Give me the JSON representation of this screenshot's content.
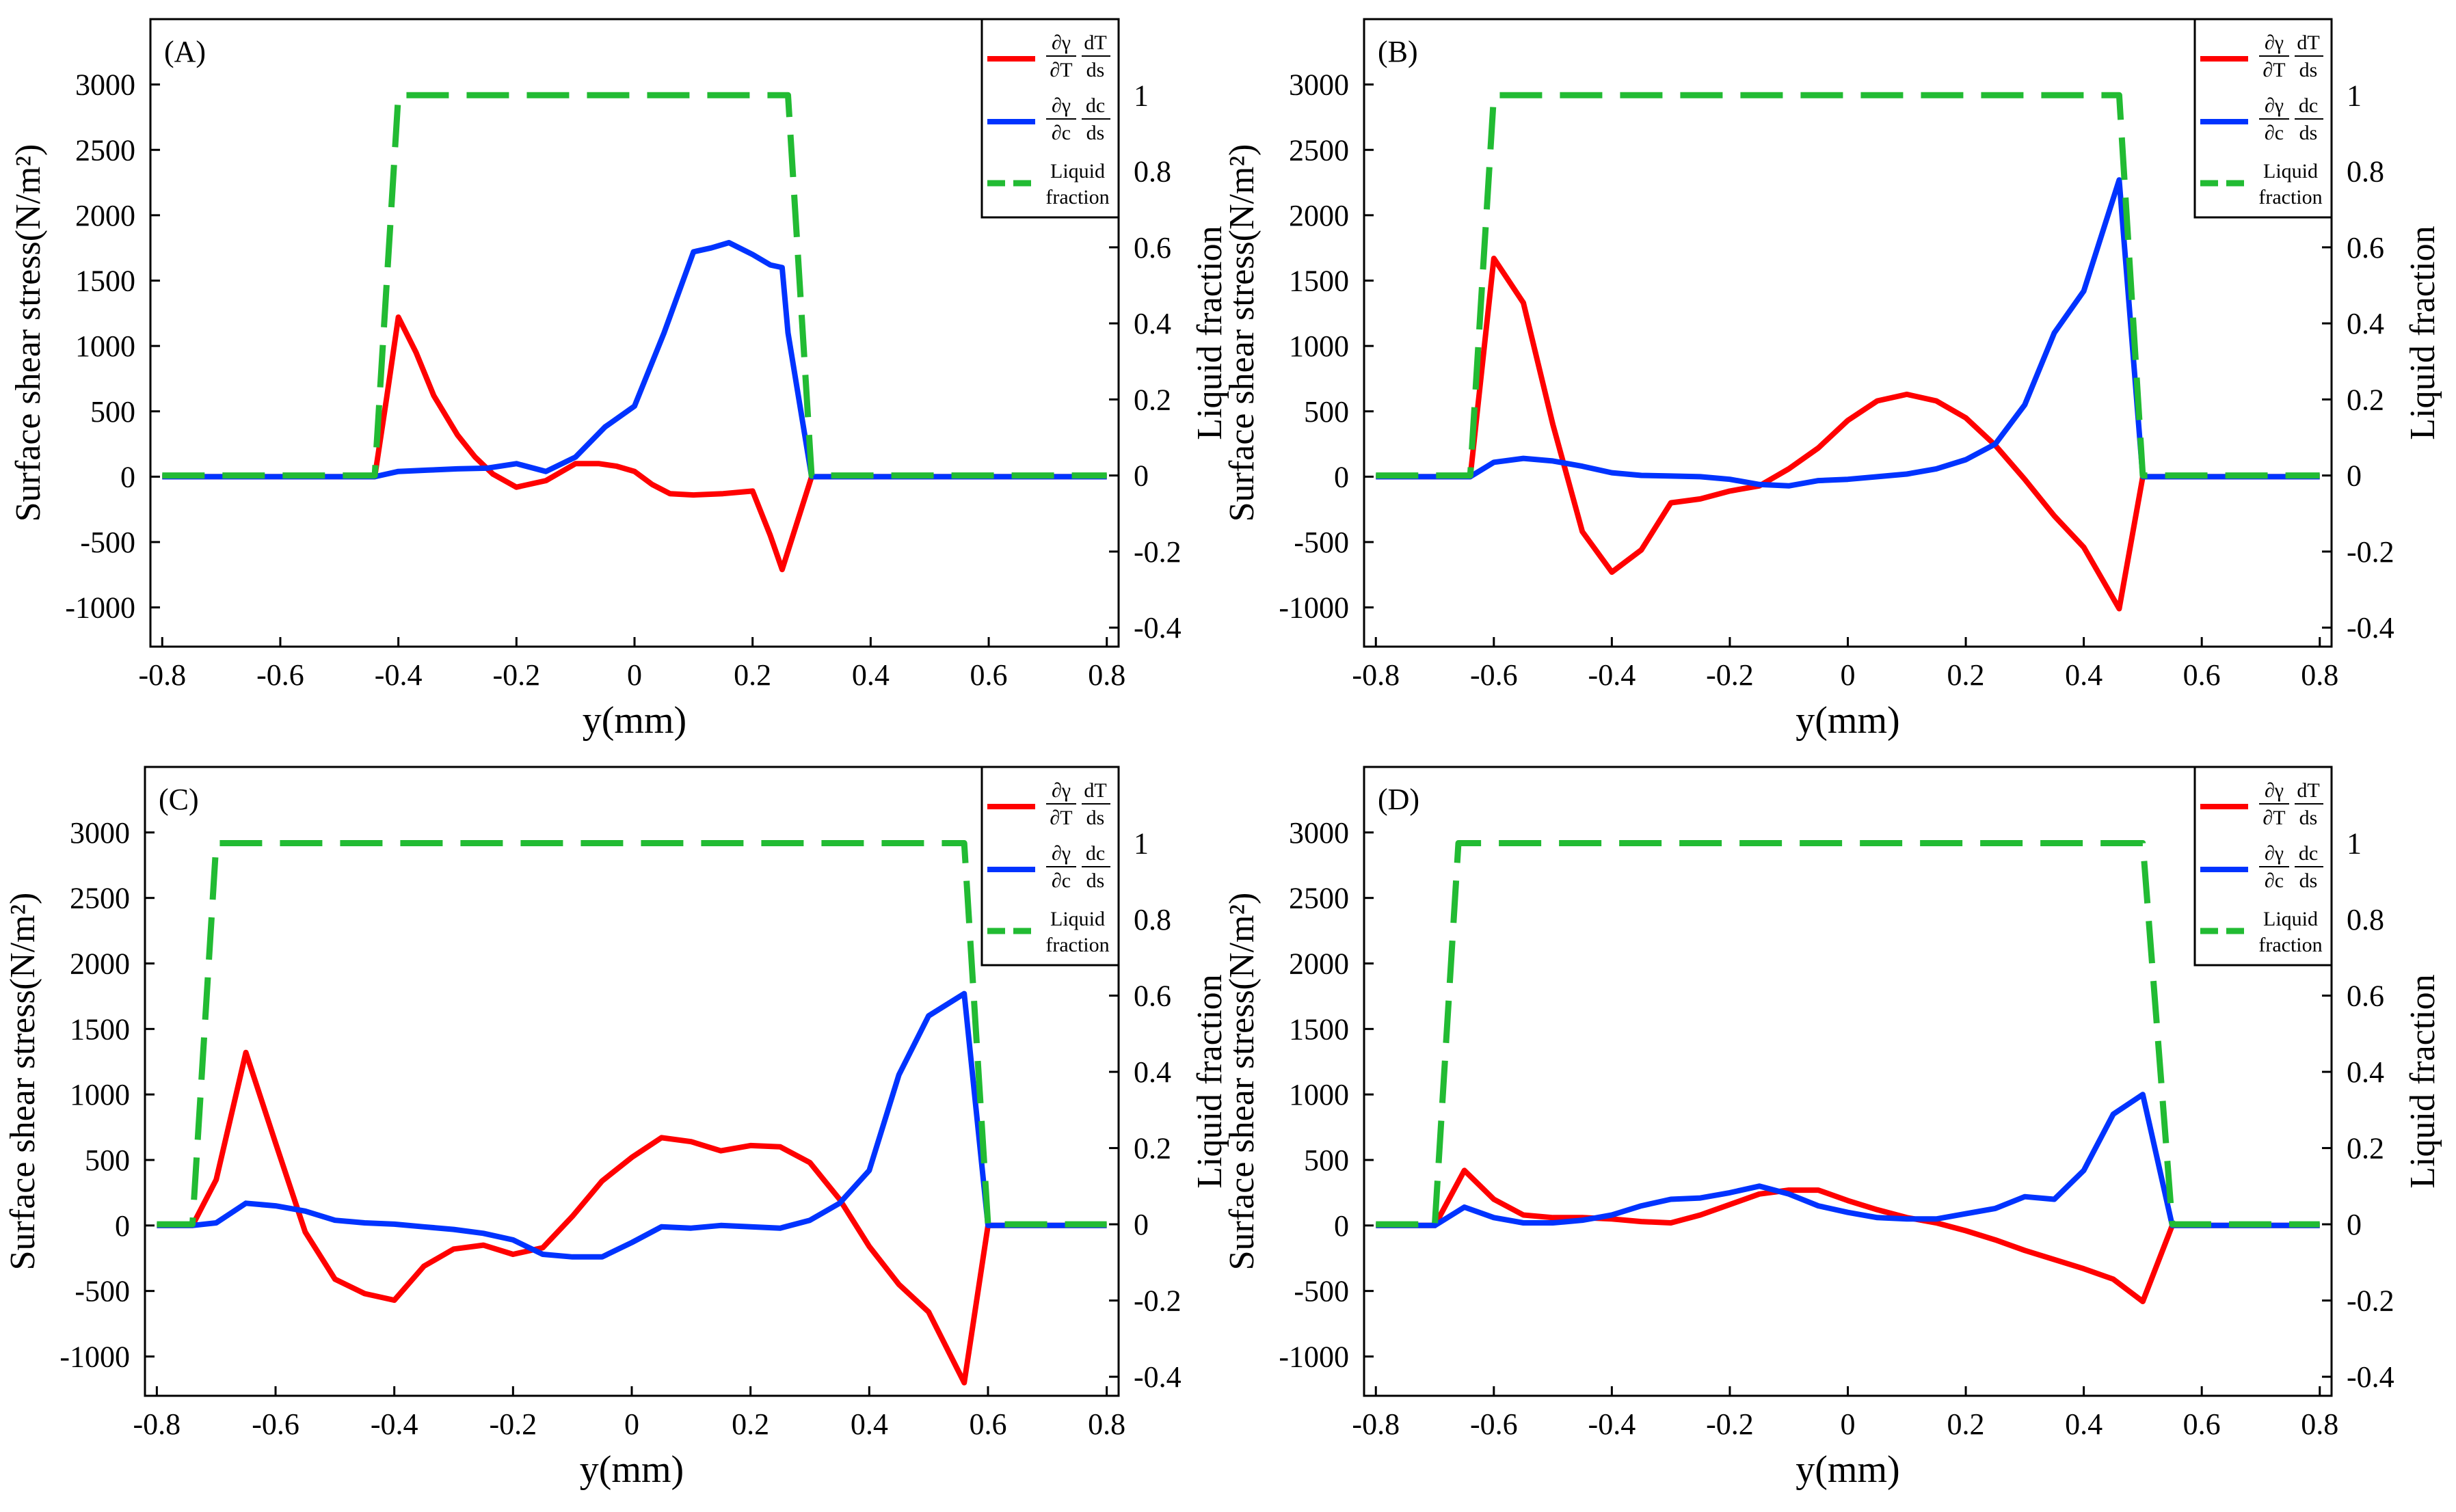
{
  "legend": {
    "thermal": {
      "num_left": "∂γ",
      "num_right": "dT",
      "den_left": "∂T",
      "den_right": "ds"
    },
    "solutal": {
      "num_left": "∂γ",
      "num_right": "dc",
      "den_left": "∂c",
      "den_right": "ds"
    },
    "liquid": {
      "line1": "Liquid",
      "line2": "fraction"
    }
  },
  "colors": {
    "thermal": "#ff0000",
    "solutal": "#0033ff",
    "liquid": "#22bb33"
  },
  "chart_data": [
    {
      "type": "line",
      "panel_label": "(A)",
      "xlabel": "y(mm)",
      "ylabel": "Surface shear stress(N/m²)",
      "y2label": "Liquid fraction",
      "xlim": [
        -0.82,
        0.82
      ],
      "ylim": [
        -1300,
        3500
      ],
      "y2lim": [
        -0.45,
        1.2
      ],
      "xticks": [
        "-0.8",
        "-0.6",
        "-0.4",
        "-0.2",
        "0",
        "0.2",
        "0.4",
        "0.6",
        "0.8"
      ],
      "yticks": [
        "3000",
        "2500",
        "2000",
        "1500",
        "1000",
        "500",
        "0",
        "-500",
        "-1000"
      ],
      "y2ticks": [
        "1",
        "0.8",
        "0.6",
        "0.4",
        "0.2",
        "0",
        "-0.2",
        "-0.4"
      ],
      "series": [
        {
          "name": "thermal",
          "x": [
            -0.8,
            -0.44,
            -0.42,
            -0.4,
            -0.37,
            -0.34,
            -0.3,
            -0.27,
            -0.24,
            -0.2,
            -0.15,
            -0.1,
            -0.06,
            -0.03,
            0,
            0.03,
            0.06,
            0.1,
            0.15,
            0.2,
            0.23,
            0.25,
            0.3,
            0.8
          ],
          "y": [
            0,
            0,
            600,
            1220,
            950,
            620,
            320,
            150,
            20,
            -80,
            -30,
            100,
            100,
            80,
            40,
            -60,
            -130,
            -140,
            -130,
            -110,
            -450,
            -710,
            0,
            0
          ]
        },
        {
          "name": "solutal",
          "x": [
            -0.8,
            -0.44,
            -0.42,
            -0.4,
            -0.35,
            -0.3,
            -0.25,
            -0.2,
            -0.15,
            -0.1,
            -0.05,
            0,
            0.05,
            0.1,
            0.13,
            0.16,
            0.2,
            0.23,
            0.25,
            0.26,
            0.3,
            0.8
          ],
          "y": [
            0,
            0,
            20,
            40,
            50,
            60,
            65,
            100,
            40,
            150,
            380,
            540,
            1100,
            1720,
            1750,
            1790,
            1700,
            1620,
            1600,
            1100,
            0,
            0
          ]
        },
        {
          "name": "liquid",
          "x": [
            -0.8,
            -0.44,
            -0.4,
            0.26,
            0.3,
            0.8
          ],
          "y": [
            0,
            0,
            1,
            1,
            0,
            0
          ]
        }
      ]
    },
    {
      "type": "line",
      "panel_label": "(B)",
      "xlabel": "y(mm)",
      "ylabel": "Surface shear stress(N/m²)",
      "y2label": "Liquid fraction",
      "xlim": [
        -0.82,
        0.82
      ],
      "ylim": [
        -1300,
        3500
      ],
      "y2lim": [
        -0.45,
        1.2
      ],
      "xticks": [
        "-0.8",
        "-0.6",
        "-0.4",
        "-0.2",
        "0",
        "0.2",
        "0.4",
        "0.6",
        "0.8"
      ],
      "yticks": [
        "3000",
        "2500",
        "2000",
        "1500",
        "1000",
        "500",
        "0",
        "-500",
        "-1000"
      ],
      "y2ticks": [
        "1",
        "0.8",
        "0.6",
        "0.4",
        "0.2",
        "0",
        "-0.2",
        "-0.4"
      ],
      "series": [
        {
          "name": "thermal",
          "x": [
            -0.8,
            -0.64,
            -0.6,
            -0.55,
            -0.5,
            -0.45,
            -0.4,
            -0.35,
            -0.3,
            -0.25,
            -0.2,
            -0.15,
            -0.1,
            -0.05,
            0,
            0.05,
            0.1,
            0.15,
            0.2,
            0.25,
            0.3,
            0.35,
            0.4,
            0.46,
            0.5,
            0.8
          ],
          "y": [
            0,
            0,
            1670,
            1330,
            400,
            -420,
            -730,
            -560,
            -200,
            -170,
            -110,
            -70,
            60,
            220,
            430,
            580,
            630,
            580,
            450,
            240,
            -20,
            -300,
            -540,
            -1010,
            0,
            0
          ]
        },
        {
          "name": "solutal",
          "x": [
            -0.8,
            -0.64,
            -0.6,
            -0.55,
            -0.5,
            -0.45,
            -0.4,
            -0.35,
            -0.3,
            -0.25,
            -0.2,
            -0.15,
            -0.1,
            -0.05,
            0,
            0.05,
            0.1,
            0.15,
            0.2,
            0.25,
            0.3,
            0.35,
            0.4,
            0.46,
            0.5,
            0.8
          ],
          "y": [
            0,
            0,
            110,
            140,
            120,
            80,
            30,
            10,
            5,
            0,
            -20,
            -60,
            -70,
            -30,
            -20,
            0,
            20,
            60,
            130,
            250,
            550,
            1100,
            1420,
            2270,
            0,
            0
          ]
        },
        {
          "name": "liquid",
          "x": [
            -0.8,
            -0.64,
            -0.6,
            0.46,
            0.5,
            0.8
          ],
          "y": [
            0,
            0,
            1,
            1,
            0,
            0
          ]
        }
      ]
    },
    {
      "type": "line",
      "panel_label": "(C)",
      "xlabel": "y(mm)",
      "ylabel": "Surface shear stress(N/m²)",
      "y2label": "Liquid fraction",
      "xlim": [
        -0.82,
        0.82
      ],
      "ylim": [
        -1300,
        3500
      ],
      "y2lim": [
        -0.45,
        1.2
      ],
      "xticks": [
        "-0.8",
        "-0.6",
        "-0.4",
        "-0.2",
        "0",
        "0.2",
        "0.4",
        "0.6",
        "0.8"
      ],
      "yticks": [
        "3000",
        "2500",
        "2000",
        "1500",
        "1000",
        "500",
        "0",
        "-500",
        "-1000"
      ],
      "y2ticks": [
        "1",
        "0.8",
        "0.6",
        "0.4",
        "0.2",
        "0",
        "-0.2",
        "-0.4"
      ],
      "series": [
        {
          "name": "thermal",
          "x": [
            -0.8,
            -0.74,
            -0.7,
            -0.65,
            -0.6,
            -0.55,
            -0.5,
            -0.45,
            -0.4,
            -0.35,
            -0.3,
            -0.25,
            -0.2,
            -0.15,
            -0.1,
            -0.05,
            0,
            0.05,
            0.1,
            0.15,
            0.2,
            0.25,
            0.3,
            0.35,
            0.4,
            0.45,
            0.5,
            0.56,
            0.6,
            0.8
          ],
          "y": [
            0,
            0,
            350,
            1320,
            630,
            -50,
            -410,
            -520,
            -570,
            -310,
            -180,
            -150,
            -220,
            -170,
            70,
            340,
            520,
            670,
            640,
            570,
            610,
            600,
            480,
            200,
            -160,
            -450,
            -660,
            -1200,
            0,
            0
          ]
        },
        {
          "name": "solutal",
          "x": [
            -0.8,
            -0.74,
            -0.7,
            -0.65,
            -0.6,
            -0.55,
            -0.5,
            -0.45,
            -0.4,
            -0.35,
            -0.3,
            -0.25,
            -0.2,
            -0.15,
            -0.1,
            -0.05,
            0,
            0.05,
            0.1,
            0.15,
            0.2,
            0.25,
            0.3,
            0.35,
            0.4,
            0.45,
            0.5,
            0.56,
            0.6,
            0.8
          ],
          "y": [
            0,
            0,
            20,
            170,
            150,
            110,
            40,
            20,
            10,
            -10,
            -30,
            -60,
            -110,
            -220,
            -240,
            -240,
            -130,
            -10,
            -20,
            0,
            -10,
            -20,
            40,
            170,
            420,
            1150,
            1600,
            1770,
            0,
            0
          ]
        },
        {
          "name": "liquid",
          "x": [
            -0.8,
            -0.74,
            -0.7,
            0.56,
            0.6,
            0.8
          ],
          "y": [
            0,
            0,
            1,
            1,
            0,
            0
          ]
        }
      ]
    },
    {
      "type": "line",
      "panel_label": "(D)",
      "xlabel": "y(mm)",
      "ylabel": "Surface shear stress(N/m²)",
      "y2label": "Liquid fraction",
      "xlim": [
        -0.82,
        0.82
      ],
      "ylim": [
        -1300,
        3500
      ],
      "y2lim": [
        -0.45,
        1.2
      ],
      "xticks": [
        "-0.8",
        "-0.6",
        "-0.4",
        "-0.2",
        "0",
        "0.2",
        "0.4",
        "0.6",
        "0.8"
      ],
      "yticks": [
        "3000",
        "2500",
        "2000",
        "1500",
        "1000",
        "500",
        "0",
        "-500",
        "-1000"
      ],
      "y2ticks": [
        "1",
        "0.8",
        "0.6",
        "0.4",
        "0.2",
        "0",
        "-0.2",
        "-0.4"
      ],
      "series": [
        {
          "name": "thermal",
          "x": [
            -0.8,
            -0.7,
            -0.65,
            -0.6,
            -0.55,
            -0.5,
            -0.45,
            -0.4,
            -0.35,
            -0.3,
            -0.25,
            -0.2,
            -0.15,
            -0.1,
            -0.05,
            0,
            0.05,
            0.1,
            0.15,
            0.2,
            0.25,
            0.3,
            0.35,
            0.4,
            0.45,
            0.5,
            0.55,
            0.8
          ],
          "y": [
            0,
            0,
            420,
            200,
            80,
            60,
            60,
            50,
            30,
            20,
            80,
            160,
            240,
            270,
            270,
            190,
            120,
            60,
            20,
            -40,
            -110,
            -190,
            -260,
            -330,
            -410,
            -580,
            0,
            0
          ]
        },
        {
          "name": "solutal",
          "x": [
            -0.8,
            -0.7,
            -0.65,
            -0.6,
            -0.55,
            -0.5,
            -0.45,
            -0.4,
            -0.35,
            -0.3,
            -0.25,
            -0.2,
            -0.15,
            -0.1,
            -0.05,
            0,
            0.05,
            0.1,
            0.15,
            0.2,
            0.25,
            0.3,
            0.35,
            0.4,
            0.45,
            0.5,
            0.55,
            0.8
          ],
          "y": [
            0,
            0,
            140,
            60,
            20,
            20,
            40,
            80,
            150,
            200,
            210,
            250,
            300,
            240,
            150,
            100,
            60,
            50,
            50,
            90,
            130,
            220,
            200,
            420,
            850,
            1000,
            0,
            0
          ]
        },
        {
          "name": "liquid",
          "x": [
            -0.8,
            -0.7,
            -0.66,
            0.5,
            0.55,
            0.8
          ],
          "y": [
            0,
            0,
            1,
            1,
            0,
            0
          ]
        }
      ]
    }
  ]
}
